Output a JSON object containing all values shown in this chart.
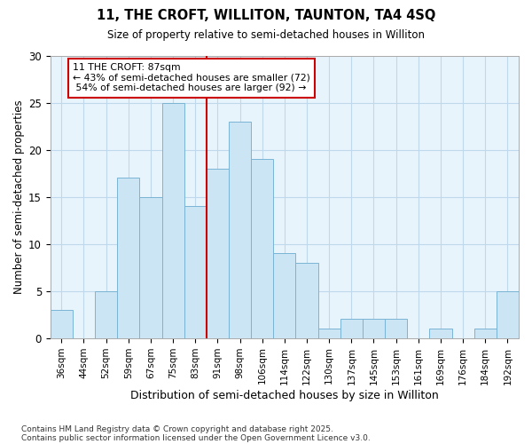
{
  "title1": "11, THE CROFT, WILLITON, TAUNTON, TA4 4SQ",
  "title2": "Size of property relative to semi-detached houses in Williton",
  "xlabel": "Distribution of semi-detached houses by size in Williton",
  "ylabel": "Number of semi-detached properties",
  "categories": [
    "36sqm",
    "44sqm",
    "52sqm",
    "59sqm",
    "67sqm",
    "75sqm",
    "83sqm",
    "91sqm",
    "98sqm",
    "106sqm",
    "114sqm",
    "122sqm",
    "130sqm",
    "137sqm",
    "145sqm",
    "153sqm",
    "161sqm",
    "169sqm",
    "176sqm",
    "184sqm",
    "192sqm"
  ],
  "values": [
    3,
    0,
    5,
    17,
    15,
    25,
    14,
    18,
    23,
    19,
    9,
    8,
    1,
    2,
    2,
    2,
    0,
    1,
    0,
    1,
    5
  ],
  "bar_color": "#cce5f5",
  "bar_edge_color": "#7ab4d4",
  "pct_smaller": 43,
  "n_smaller": 72,
  "pct_larger": 54,
  "n_larger": 92,
  "annotation_box_color": "#ffffff",
  "annotation_box_edge": "#cc0000",
  "vline_color": "#cc0000",
  "ylim": [
    0,
    30
  ],
  "yticks": [
    0,
    5,
    10,
    15,
    20,
    25,
    30
  ],
  "grid_color": "#c0d8ec",
  "background_color": "#ffffff",
  "plot_bg_color": "#e8f4fc",
  "footer1": "Contains HM Land Registry data © Crown copyright and database right 2025.",
  "footer2": "Contains public sector information licensed under the Open Government Licence v3.0."
}
